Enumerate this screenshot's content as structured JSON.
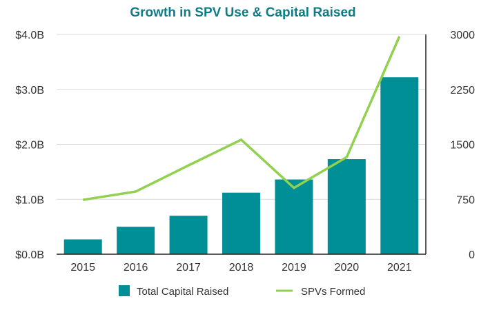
{
  "chart_data": {
    "type": "bar+line",
    "title": "Growth in SPV Use & Capital Raised",
    "categories": [
      "2015",
      "2016",
      "2017",
      "2018",
      "2019",
      "2020",
      "2021"
    ],
    "series": [
      {
        "name": "Total Capital Raised",
        "type": "bar",
        "axis": "left",
        "unit": "$B",
        "color": "#008F96",
        "values": [
          0.27,
          0.5,
          0.7,
          1.12,
          1.36,
          1.73,
          3.22
        ]
      },
      {
        "name": "SPVs Formed",
        "type": "line",
        "axis": "right",
        "color": "#92D050",
        "values": [
          742,
          855,
          1212,
          1563,
          905,
          1325,
          2973
        ]
      }
    ],
    "left_axis": {
      "ylim": [
        0,
        4.0
      ],
      "ticks": [
        0,
        1,
        2,
        3,
        4
      ],
      "tick_labels": [
        "$0.0B",
        "$1.0B",
        "$2.0B",
        "$3.0B",
        "$4.0B"
      ]
    },
    "right_axis": {
      "ylim": [
        0,
        3000
      ],
      "ticks": [
        0,
        750,
        1500,
        2250,
        3000
      ],
      "tick_labels": [
        "0",
        "750",
        "1500",
        "2250",
        "3000"
      ]
    },
    "grid": true,
    "legend": "bottom",
    "title_color": "#0E7C86"
  }
}
